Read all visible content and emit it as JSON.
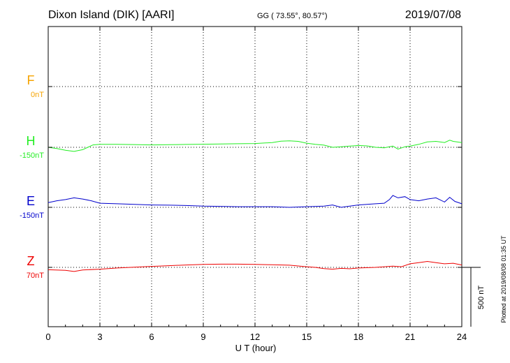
{
  "header": {
    "station": "Dixon Island (DIK)  [AARI]",
    "coords": "GG ( 73.55°,  80.57°)",
    "date": "2019/07/08"
  },
  "footer": {
    "plotted": "Plotted at 2019/08/08 01:35 UT"
  },
  "colors": {
    "F": "#f5a300",
    "H": "#22ee22",
    "E": "#0000cc",
    "Z": "#ee0000"
  },
  "chart_data": {
    "type": "line",
    "xlabel": "U T (hour)",
    "xlim": [
      0,
      24
    ],
    "xticks": [
      0,
      3,
      6,
      9,
      12,
      15,
      18,
      21,
      24
    ],
    "scale_bar": "500 nT",
    "grid": true,
    "series": [
      {
        "name": "F",
        "baseline": "0nT",
        "points": []
      },
      {
        "name": "H",
        "baseline": "-150nT",
        "points": [
          [
            0,
            -150
          ],
          [
            0.5,
            -160
          ],
          [
            1,
            -175
          ],
          [
            1.5,
            -185
          ],
          [
            2,
            -170
          ],
          [
            2.3,
            -150
          ],
          [
            2.6,
            -130
          ],
          [
            3,
            -125
          ],
          [
            4,
            -125
          ],
          [
            5,
            -127
          ],
          [
            6,
            -130
          ],
          [
            7,
            -128
          ],
          [
            8,
            -126
          ],
          [
            9,
            -124
          ],
          [
            10,
            -122
          ],
          [
            11,
            -120
          ],
          [
            12,
            -118
          ],
          [
            13,
            -110
          ],
          [
            13.5,
            -98
          ],
          [
            14,
            -95
          ],
          [
            14.5,
            -100
          ],
          [
            15,
            -115
          ],
          [
            15.5,
            -125
          ],
          [
            16,
            -132
          ],
          [
            16.5,
            -150
          ],
          [
            17,
            -145
          ],
          [
            17.5,
            -140
          ],
          [
            18,
            -135
          ],
          [
            18.5,
            -138
          ],
          [
            19,
            -150
          ],
          [
            19.5,
            -155
          ],
          [
            20,
            -140
          ],
          [
            20.3,
            -165
          ],
          [
            20.7,
            -145
          ],
          [
            21,
            -140
          ],
          [
            21.5,
            -125
          ],
          [
            22,
            -105
          ],
          [
            22.5,
            -100
          ],
          [
            23,
            -110
          ],
          [
            23.3,
            -90
          ],
          [
            23.5,
            -100
          ],
          [
            24,
            -110
          ]
        ]
      },
      {
        "name": "E",
        "baseline": "-150nT",
        "points": [
          [
            0,
            -110
          ],
          [
            0.5,
            -95
          ],
          [
            1,
            -85
          ],
          [
            1.5,
            -70
          ],
          [
            2,
            -80
          ],
          [
            2.5,
            -95
          ],
          [
            3,
            -115
          ],
          [
            4,
            -120
          ],
          [
            5,
            -125
          ],
          [
            6,
            -130
          ],
          [
            7,
            -132
          ],
          [
            8,
            -135
          ],
          [
            9,
            -140
          ],
          [
            10,
            -142
          ],
          [
            11,
            -145
          ],
          [
            12,
            -145
          ],
          [
            13,
            -145
          ],
          [
            14,
            -150
          ],
          [
            15,
            -145
          ],
          [
            16,
            -140
          ],
          [
            16.5,
            -130
          ],
          [
            17,
            -150
          ],
          [
            17.5,
            -140
          ],
          [
            18,
            -130
          ],
          [
            19,
            -120
          ],
          [
            19.5,
            -115
          ],
          [
            19.8,
            -85
          ],
          [
            20,
            -50
          ],
          [
            20.3,
            -70
          ],
          [
            20.7,
            -60
          ],
          [
            21,
            -85
          ],
          [
            21.5,
            -95
          ],
          [
            22,
            -80
          ],
          [
            22.5,
            -70
          ],
          [
            23,
            -105
          ],
          [
            23.3,
            -65
          ],
          [
            23.6,
            -100
          ],
          [
            24,
            -120
          ]
        ]
      },
      {
        "name": "Z",
        "baseline": "70nT",
        "points": [
          [
            0,
            50
          ],
          [
            1,
            45
          ],
          [
            1.5,
            35
          ],
          [
            2,
            48
          ],
          [
            3,
            55
          ],
          [
            4,
            65
          ],
          [
            5,
            72
          ],
          [
            6,
            78
          ],
          [
            7,
            84
          ],
          [
            8,
            90
          ],
          [
            9,
            95
          ],
          [
            10,
            97
          ],
          [
            11,
            97
          ],
          [
            12,
            95
          ],
          [
            13,
            92
          ],
          [
            14,
            88
          ],
          [
            15,
            75
          ],
          [
            15.5,
            70
          ],
          [
            16,
            60
          ],
          [
            16.5,
            55
          ],
          [
            17,
            62
          ],
          [
            17.5,
            58
          ],
          [
            18,
            65
          ],
          [
            19,
            70
          ],
          [
            20,
            80
          ],
          [
            20.5,
            75
          ],
          [
            21,
            100
          ],
          [
            21.5,
            110
          ],
          [
            22,
            120
          ],
          [
            22.5,
            110
          ],
          [
            23,
            100
          ],
          [
            23.5,
            105
          ],
          [
            24,
            90
          ]
        ]
      }
    ]
  }
}
